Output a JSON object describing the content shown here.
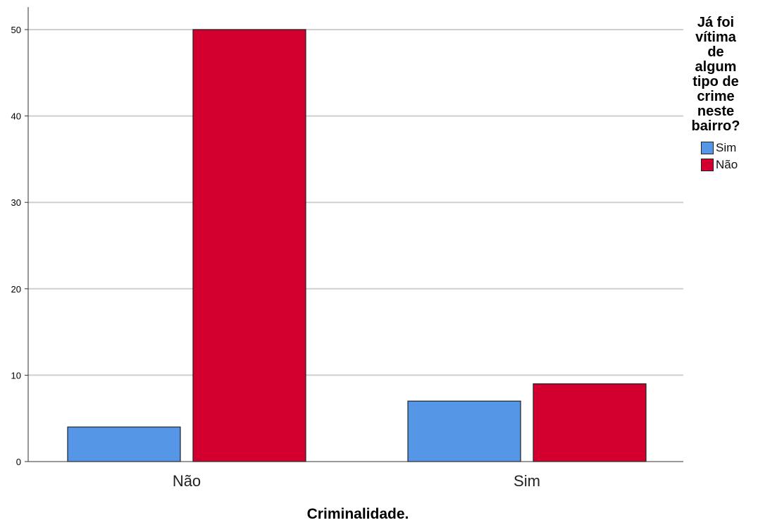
{
  "chart_data": {
    "type": "bar",
    "categories": [
      "Não",
      "Sim"
    ],
    "series": [
      {
        "name": "Sim",
        "values": [
          4,
          7
        ],
        "color": "#5596e6"
      },
      {
        "name": "Não",
        "values": [
          50,
          9
        ],
        "color": "#d3002f"
      }
    ],
    "xlabel": "Criminalidade.",
    "ylabel": "",
    "ylim": [
      0,
      52.5
    ],
    "yticks": [
      0,
      10,
      20,
      30,
      40,
      50
    ],
    "grid": true,
    "legend": {
      "title": "Já foi vítima de algum tipo de crime neste bairro?",
      "placement": "right"
    }
  }
}
